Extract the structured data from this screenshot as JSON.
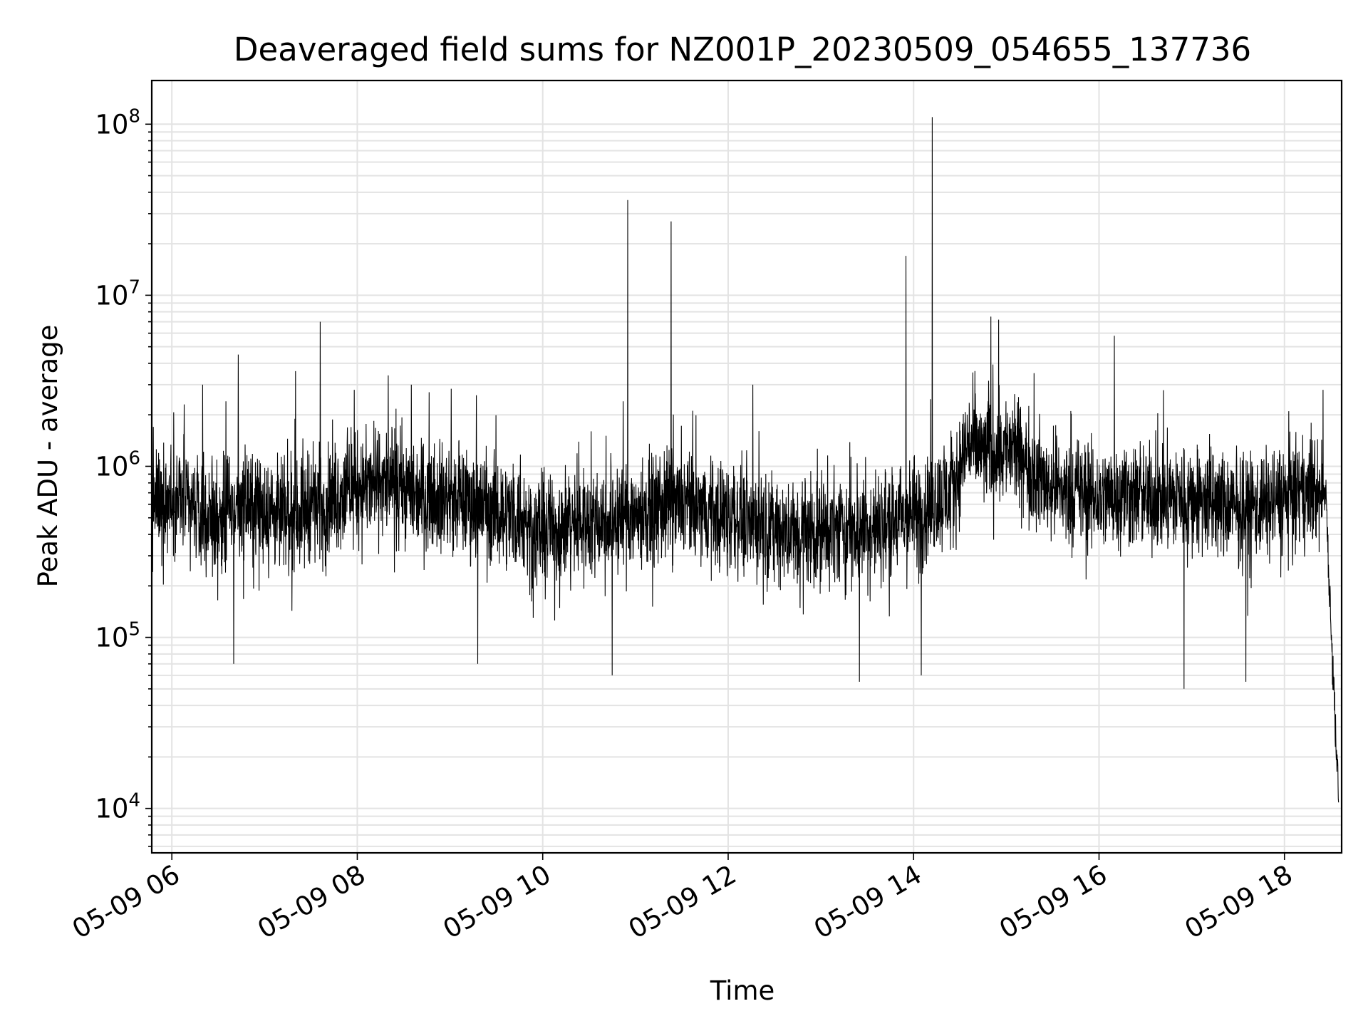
{
  "chart_data": {
    "type": "line",
    "title": "Deaveraged field sums for NZ001P_20230509_054655_137736",
    "xlabel": "Time",
    "ylabel": "Peak ADU - average",
    "yscale": "log",
    "ylim": [
      5500,
      180000000
    ],
    "xlim": [
      "2023-05-09 05:47",
      "2023-05-09 18:37"
    ],
    "grid": true,
    "line_color": "#000000",
    "x_ticks": [
      "05-09 06",
      "05-09 08",
      "05-09 10",
      "05-09 12",
      "05-09 14",
      "05-09 16",
      "05-09 18"
    ],
    "y_ticks": [
      {
        "base": "10",
        "exp": "4",
        "value": 10000
      },
      {
        "base": "10",
        "exp": "5",
        "value": 100000
      },
      {
        "base": "10",
        "exp": "6",
        "value": 1000000
      },
      {
        "base": "10",
        "exp": "7",
        "value": 10000000
      },
      {
        "base": "10",
        "exp": "8",
        "value": 100000000
      }
    ],
    "series": [
      {
        "values": [
          [
            "2023-05-09 05:47",
            600000
          ],
          [
            "2023-05-09 06:00",
            700000
          ],
          [
            "2023-05-09 06:15",
            550000
          ],
          [
            "2023-05-09 06:30",
            500000
          ],
          [
            "2023-05-09 06:45",
            600000
          ],
          [
            "2023-05-09 07:00",
            550000
          ],
          [
            "2023-05-09 07:15",
            500000
          ],
          [
            "2023-05-09 07:30",
            600000
          ],
          [
            "2023-05-09 07:45",
            650000
          ],
          [
            "2023-05-09 08:00",
            750000
          ],
          [
            "2023-05-09 08:15",
            800000
          ],
          [
            "2023-05-09 08:30",
            750000
          ],
          [
            "2023-05-09 08:45",
            700000
          ],
          [
            "2023-05-09 09:00",
            650000
          ],
          [
            "2023-05-09 09:15",
            600000
          ],
          [
            "2023-05-09 09:30",
            550000
          ],
          [
            "2023-05-09 09:45",
            500000
          ],
          [
            "2023-05-09 10:00",
            420000
          ],
          [
            "2023-05-09 10:15",
            450000
          ],
          [
            "2023-05-09 10:30",
            480000
          ],
          [
            "2023-05-09 10:45",
            500000
          ],
          [
            "2023-05-09 11:00",
            520000
          ],
          [
            "2023-05-09 11:15",
            550000
          ],
          [
            "2023-05-09 11:30",
            600000
          ],
          [
            "2023-05-09 11:45",
            550000
          ],
          [
            "2023-05-09 12:00",
            520000
          ],
          [
            "2023-05-09 12:15",
            500000
          ],
          [
            "2023-05-09 12:30",
            420000
          ],
          [
            "2023-05-09 12:45",
            400000
          ],
          [
            "2023-05-09 13:00",
            420000
          ],
          [
            "2023-05-09 13:15",
            430000
          ],
          [
            "2023-05-09 13:30",
            420000
          ],
          [
            "2023-05-09 13:45",
            450000
          ],
          [
            "2023-05-09 14:00",
            520000
          ],
          [
            "2023-05-09 14:10",
            600000
          ],
          [
            "2023-05-09 14:25",
            700000
          ],
          [
            "2023-05-09 14:35",
            1400000
          ],
          [
            "2023-05-09 14:45",
            1200000
          ],
          [
            "2023-05-09 15:00",
            1300000
          ],
          [
            "2023-05-09 15:10",
            1100000
          ],
          [
            "2023-05-09 15:25",
            800000
          ],
          [
            "2023-05-09 15:45",
            700000
          ],
          [
            "2023-05-09 16:00",
            650000
          ],
          [
            "2023-05-09 16:15",
            700000
          ],
          [
            "2023-05-09 16:30",
            650000
          ],
          [
            "2023-05-09 16:45",
            650000
          ],
          [
            "2023-05-09 17:00",
            650000
          ],
          [
            "2023-05-09 17:15",
            600000
          ],
          [
            "2023-05-09 17:30",
            550000
          ],
          [
            "2023-05-09 17:45",
            600000
          ],
          [
            "2023-05-09 18:00",
            650000
          ],
          [
            "2023-05-09 18:15",
            700000
          ],
          [
            "2023-05-09 18:27",
            700000
          ],
          [
            "2023-05-09 18:29",
            200000
          ],
          [
            "2023-05-09 18:31",
            80000
          ],
          [
            "2023-05-09 18:33",
            30000
          ],
          [
            "2023-05-09 18:35",
            12000
          ]
        ],
        "noise_band_decades": 0.45,
        "spikes": [
          [
            "2023-05-09 05:48",
            1700000
          ],
          [
            "2023-05-09 06:08",
            2300000
          ],
          [
            "2023-05-09 06:20",
            3000000
          ],
          [
            "2023-05-09 06:35",
            2400000
          ],
          [
            "2023-05-09 06:43",
            4500000
          ],
          [
            "2023-05-09 07:20",
            3600000
          ],
          [
            "2023-05-09 07:36",
            7000000
          ],
          [
            "2023-05-09 07:58",
            2800000
          ],
          [
            "2023-05-09 08:20",
            3400000
          ],
          [
            "2023-05-09 08:35",
            3000000
          ],
          [
            "2023-05-09 09:17",
            2600000
          ],
          [
            "2023-05-09 10:52",
            2400000
          ],
          [
            "2023-05-09 10:55",
            36000000
          ],
          [
            "2023-05-09 11:23",
            27000000
          ],
          [
            "2023-05-09 12:16",
            3000000
          ],
          [
            "2023-05-09 13:55",
            17000000
          ],
          [
            "2023-05-09 14:12",
            110000000
          ],
          [
            "2023-05-09 14:50",
            7500000
          ],
          [
            "2023-05-09 14:55",
            7200000
          ],
          [
            "2023-05-09 15:18",
            3500000
          ],
          [
            "2023-05-09 16:10",
            5800000
          ],
          [
            "2023-05-09 18:25",
            2800000
          ],
          [
            "2023-05-09 06:40",
            70000
          ],
          [
            "2023-05-09 09:18",
            70000
          ],
          [
            "2023-05-09 10:45",
            60000
          ],
          [
            "2023-05-09 13:25",
            55000
          ],
          [
            "2023-05-09 14:05",
            60000
          ],
          [
            "2023-05-09 16:55",
            50000
          ],
          [
            "2023-05-09 17:35",
            55000
          ]
        ]
      }
    ]
  }
}
